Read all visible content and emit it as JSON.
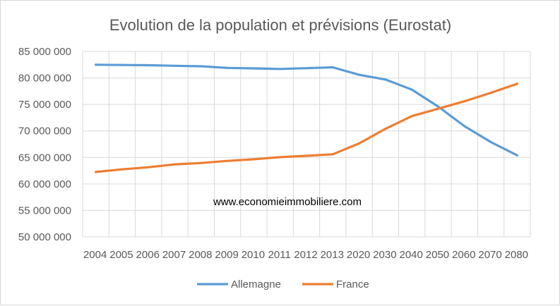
{
  "chart_data": {
    "type": "line",
    "title": "Evolution de la population et prévisions (Eurostat)",
    "annotation": "www.economieimmobiliere.com",
    "categories": [
      "2004",
      "2005",
      "2006",
      "2007",
      "2008",
      "2009",
      "2010",
      "2011",
      "2012",
      "2013",
      "2020",
      "2030",
      "2040",
      "2050",
      "2060",
      "2070",
      "2080"
    ],
    "y_tick_labels": [
      "50 000 000",
      "55 000 000",
      "60 000 000",
      "65 000 000",
      "70 000 000",
      "75 000 000",
      "80 000 000",
      "85 000 000"
    ],
    "ylim": [
      50000000,
      85000000
    ],
    "y_step": 5000000,
    "grid": true,
    "legend": "bottom",
    "series": [
      {
        "name": "Allemagne",
        "color": "#5b9bd5",
        "values": [
          82500000,
          82450000,
          82400000,
          82300000,
          82200000,
          81900000,
          81800000,
          81700000,
          81850000,
          82000000,
          80600000,
          79700000,
          77800000,
          74600000,
          70900000,
          67900000,
          65400000
        ]
      },
      {
        "name": "France",
        "color": "#ed7d31",
        "values": [
          62250000,
          62750000,
          63150000,
          63700000,
          63950000,
          64350000,
          64650000,
          65050000,
          65300000,
          65600000,
          67650000,
          70400000,
          72800000,
          74200000,
          75600000,
          77200000,
          78900000
        ]
      }
    ]
  }
}
